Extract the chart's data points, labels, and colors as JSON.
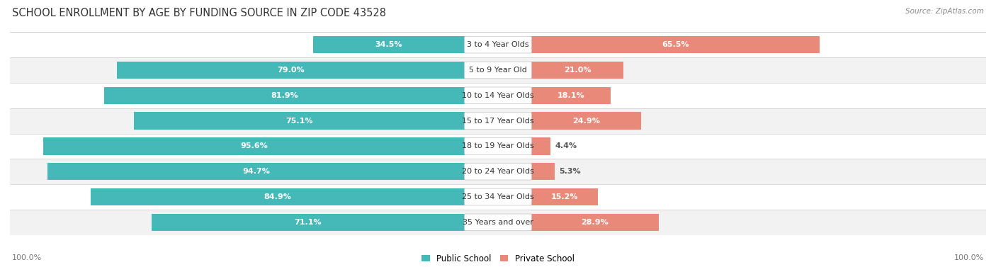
{
  "title": "SCHOOL ENROLLMENT BY AGE BY FUNDING SOURCE IN ZIP CODE 43528",
  "source": "Source: ZipAtlas.com",
  "categories": [
    "3 to 4 Year Olds",
    "5 to 9 Year Old",
    "10 to 14 Year Olds",
    "15 to 17 Year Olds",
    "18 to 19 Year Olds",
    "20 to 24 Year Olds",
    "25 to 34 Year Olds",
    "35 Years and over"
  ],
  "public_values": [
    34.5,
    79.0,
    81.9,
    75.1,
    95.6,
    94.7,
    84.9,
    71.1
  ],
  "private_values": [
    65.5,
    21.0,
    18.1,
    24.9,
    4.4,
    5.3,
    15.2,
    28.9
  ],
  "public_color": "#45b8b8",
  "private_color": "#e8897a",
  "row_bg_even": "#f2f2f2",
  "row_bg_odd": "#ffffff",
  "label_color_white": "#ffffff",
  "label_color_dark": "#555555",
  "center_label_bg": "#ffffff",
  "axis_label_left": "100.0%",
  "axis_label_right": "100.0%",
  "legend_public": "Public School",
  "legend_private": "Private School",
  "title_fontsize": 10.5,
  "source_fontsize": 7.5,
  "bar_label_fontsize": 8,
  "category_fontsize": 8,
  "axis_fontsize": 8,
  "pub_inside_threshold": 20,
  "priv_inside_threshold": 10
}
